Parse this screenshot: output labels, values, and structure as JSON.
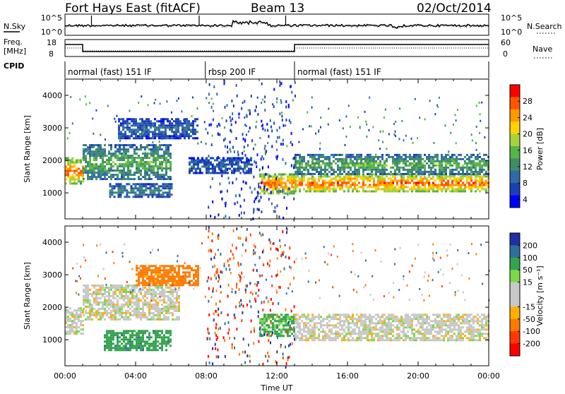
{
  "header": {
    "station": "Fort Hays East (fitACF)",
    "beam": "Beam 13",
    "date": "02/Oct/2014"
  },
  "status": {
    "nsky_label": "N.Sky",
    "nsearch_label": "N.Search",
    "freq_label_1": "Freq.",
    "freq_label_2": "[MHz]",
    "nave_label": "Nave",
    "cpid_label": "CPID",
    "noise_ticks_left": [
      "10^5",
      "10^0"
    ],
    "noise_ticks_right": [
      "10^5",
      "10^0"
    ],
    "freq_ticks_left": [
      "18",
      "8"
    ],
    "nave_ticks_right": [
      "60",
      "0"
    ],
    "cpid_segments": [
      {
        "label": "normal (fast) 151 IF",
        "start_hour": 0,
        "end_hour": 7.95
      },
      {
        "label": "rbsp 200 IF",
        "start_hour": 7.95,
        "end_hour": 13.0
      },
      {
        "label": "normal (fast) 151 IF",
        "start_hour": 13.0,
        "end_hour": 24
      }
    ]
  },
  "chart_data": [
    {
      "type": "heatmap",
      "quantity": "power",
      "xlabel": "Time UT",
      "ylabel": "Slant Range [km]",
      "xlim_hours": [
        0,
        24
      ],
      "ylim_km": [
        200,
        4500
      ],
      "x_ticks": [
        "00:00",
        "04:00",
        "08:00",
        "12:00",
        "16:00",
        "20:00",
        "00:00"
      ],
      "y_ticks": [
        1000,
        2000,
        3000,
        4000
      ],
      "colorbar": {
        "label": "Power [dB]",
        "ticks": [
          4,
          8,
          12,
          16,
          20,
          24,
          28
        ],
        "colors": [
          "#0000ff",
          "#1c3fb5",
          "#2f6aa6",
          "#3f8c6a",
          "#55b548",
          "#a8d23a",
          "#ffd200",
          "#ff9900",
          "#ff5500",
          "#ff0000"
        ]
      },
      "echo_bands": [
        {
          "t0": 0.0,
          "t1": 1.0,
          "r0": 1300,
          "r1": 2100,
          "level": 26
        },
        {
          "t0": 1.0,
          "t1": 6.0,
          "r0": 1400,
          "r1": 2500,
          "level": 14
        },
        {
          "t0": 2.5,
          "t1": 6.0,
          "r0": 850,
          "r1": 1300,
          "level": 10
        },
        {
          "t0": 3.0,
          "t1": 7.5,
          "r0": 2700,
          "r1": 3300,
          "level": 8
        },
        {
          "t0": 7.0,
          "t1": 10.5,
          "r0": 1600,
          "r1": 2100,
          "level": 8
        },
        {
          "t0": 11.0,
          "t1": 13.0,
          "r0": 1000,
          "r1": 1600,
          "level": 26
        },
        {
          "t0": 13.0,
          "t1": 24.0,
          "r0": 1050,
          "r1": 1600,
          "level": 26
        },
        {
          "t0": 13.0,
          "t1": 24.0,
          "r0": 1600,
          "r1": 2200,
          "level": 14
        }
      ]
    },
    {
      "type": "heatmap",
      "quantity": "velocity",
      "xlabel": "Time UT",
      "ylabel": "Slant Range [km]",
      "xlim_hours": [
        0,
        24
      ],
      "ylim_km": [
        200,
        4500
      ],
      "x_ticks": [
        "00:00",
        "04:00",
        "08:00",
        "12:00",
        "16:00",
        "20:00",
        "00:00"
      ],
      "y_ticks": [
        1000,
        2000,
        3000,
        4000
      ],
      "colorbar": {
        "label": "Velocity [m s⁻¹]",
        "ticks": [
          200,
          100,
          50,
          15,
          -15,
          -50,
          -100,
          -200
        ],
        "colors": [
          "#1f2fa8",
          "#2e6f9e",
          "#34a34e",
          "#7bd84b",
          "#c8c8c8",
          "#c8c8c8",
          "#ffb000",
          "#ff7a00",
          "#ff3a00",
          "#ff0000"
        ]
      },
      "echo_bands": [
        {
          "t0": 0.0,
          "t1": 1.0,
          "r0": 1200,
          "r1": 2000,
          "velocity": 0
        },
        {
          "t0": 1.0,
          "t1": 6.5,
          "r0": 1600,
          "r1": 2700,
          "velocity": 0
        },
        {
          "t0": 2.2,
          "t1": 6.0,
          "r0": 700,
          "r1": 1300,
          "velocity": 60
        },
        {
          "t0": 4.0,
          "t1": 7.5,
          "r0": 2700,
          "r1": 3300,
          "velocity": -50
        },
        {
          "t0": 11.0,
          "t1": 13.0,
          "r0": 1100,
          "r1": 1800,
          "velocity": 40
        },
        {
          "t0": 13.0,
          "t1": 24.0,
          "r0": 1000,
          "r1": 1800,
          "velocity": 0
        }
      ]
    }
  ]
}
